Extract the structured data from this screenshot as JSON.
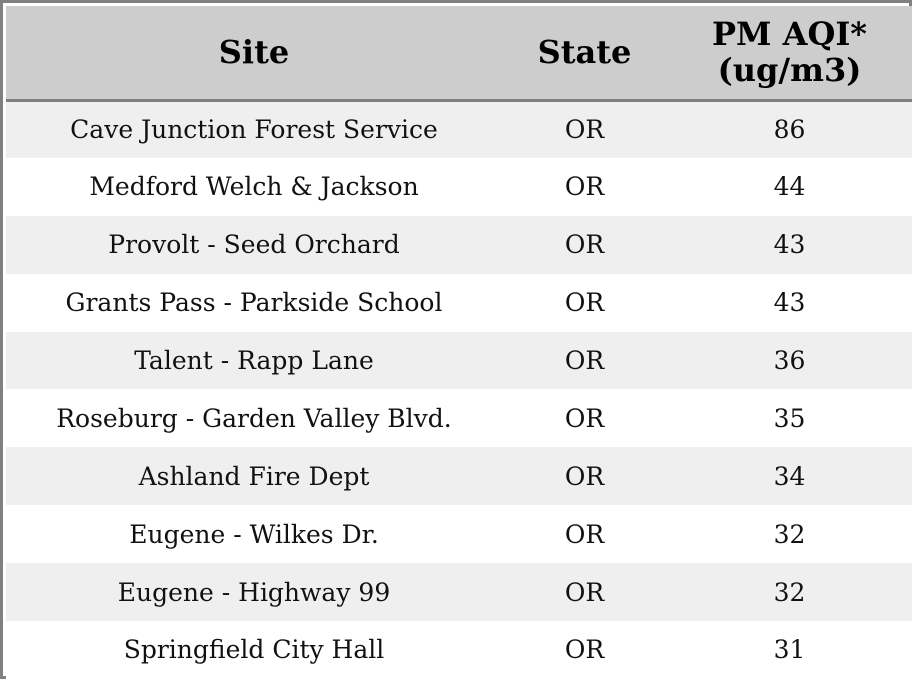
{
  "colors": {
    "header_bg": "#cdcdcd",
    "row_alt_bg": "#efefef",
    "row_bg": "#ffffff",
    "border": "#808080"
  },
  "table": {
    "headers": {
      "site": "Site",
      "state": "State",
      "aqi_line1": "PM AQI*",
      "aqi_line2": "(ug/m3)"
    },
    "rows": [
      {
        "site": "Cave Junction Forest Service",
        "state": "OR",
        "aqi": "86"
      },
      {
        "site": "Medford Welch & Jackson",
        "state": "OR",
        "aqi": "44"
      },
      {
        "site": "Provolt - Seed Orchard",
        "state": "OR",
        "aqi": "43"
      },
      {
        "site": "Grants Pass - Parkside School",
        "state": "OR",
        "aqi": "43"
      },
      {
        "site": "Talent - Rapp Lane",
        "state": "OR",
        "aqi": "36"
      },
      {
        "site": "Roseburg - Garden Valley Blvd.",
        "state": "OR",
        "aqi": "35"
      },
      {
        "site": "Ashland Fire Dept",
        "state": "OR",
        "aqi": "34"
      },
      {
        "site": "Eugene - Wilkes Dr.",
        "state": "OR",
        "aqi": "32"
      },
      {
        "site": "Eugene - Highway 99",
        "state": "OR",
        "aqi": "32"
      },
      {
        "site": "Springfield City Hall",
        "state": "OR",
        "aqi": "31"
      }
    ]
  }
}
